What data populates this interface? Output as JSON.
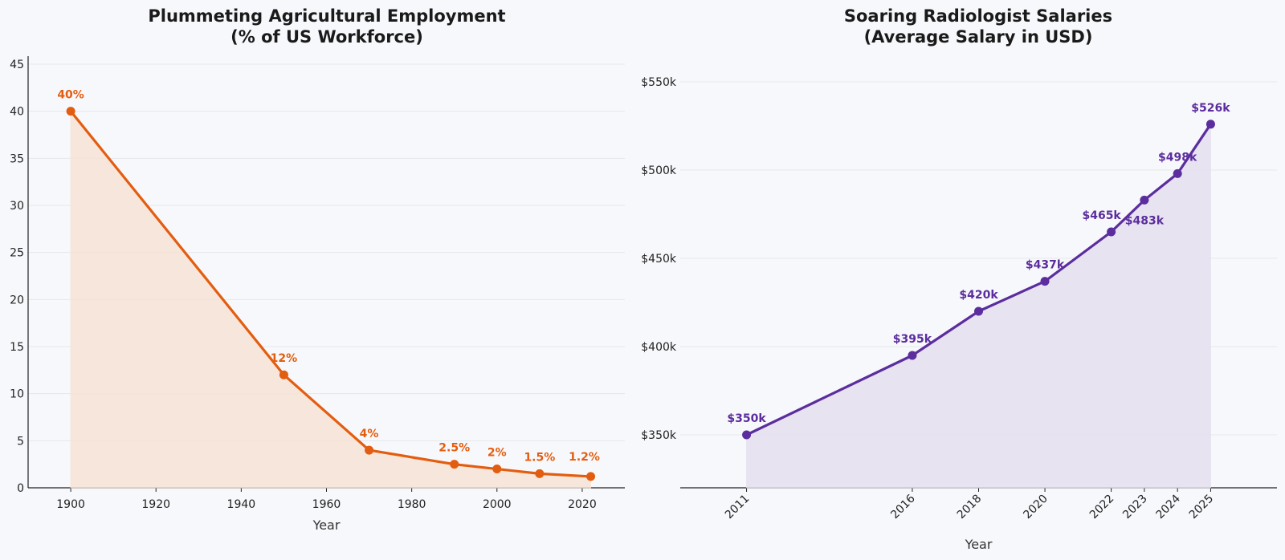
{
  "chart_data": [
    {
      "type": "area",
      "title": [
        "Plummeting Agricultural Employment",
        "(% of US Workforce)"
      ],
      "xlabel": "Year",
      "ylabel": "",
      "x": [
        1900,
        1950,
        1970,
        1990,
        2000,
        2010,
        2022
      ],
      "values": [
        40,
        12,
        4,
        2.5,
        2,
        1.5,
        1.2
      ],
      "data_labels": [
        "40%",
        "12%",
        "4%",
        "2.5%",
        "2%",
        "1.5%",
        "1.2%"
      ],
      "xlim": [
        1890,
        2030
      ],
      "ylim": [
        0,
        45
      ],
      "xticks": [
        1900,
        1920,
        1940,
        1960,
        1980,
        2000,
        2020
      ],
      "yticks": [
        0,
        5,
        10,
        15,
        20,
        25,
        30,
        35,
        40,
        45
      ],
      "ytick_labels": [
        "0",
        "5",
        "10",
        "15",
        "20",
        "25",
        "30",
        "35",
        "40",
        "45"
      ],
      "grid": "horizontal",
      "color": "#e35d10",
      "fill_color": "#f7e4d6"
    },
    {
      "type": "area",
      "title": [
        "Soaring Radiologist Salaries",
        "(Average Salary in USD)"
      ],
      "xlabel": "Year",
      "ylabel": "",
      "x": [
        2011,
        2016,
        2018,
        2020,
        2022,
        2023,
        2024,
        2025
      ],
      "values": [
        350000,
        395000,
        420000,
        437000,
        465000,
        483000,
        498000,
        526000
      ],
      "data_labels": [
        "$350k",
        "$395k",
        "$420k",
        "$437k",
        "$465k",
        "$483k",
        "$498k",
        "$526k"
      ],
      "xlim": [
        2009,
        2027
      ],
      "ylim": [
        320000,
        560000
      ],
      "xticks": [
        2011,
        2016,
        2018,
        2020,
        2022,
        2023,
        2024,
        2025
      ],
      "yticks": [
        350000,
        400000,
        450000,
        500000,
        550000
      ],
      "ytick_labels": [
        "$350k",
        "$400k",
        "$450k",
        "$500k",
        "$550k"
      ],
      "grid": "horizontal",
      "color": "#5b2d9e",
      "fill_color": "#e6e0f0"
    }
  ]
}
